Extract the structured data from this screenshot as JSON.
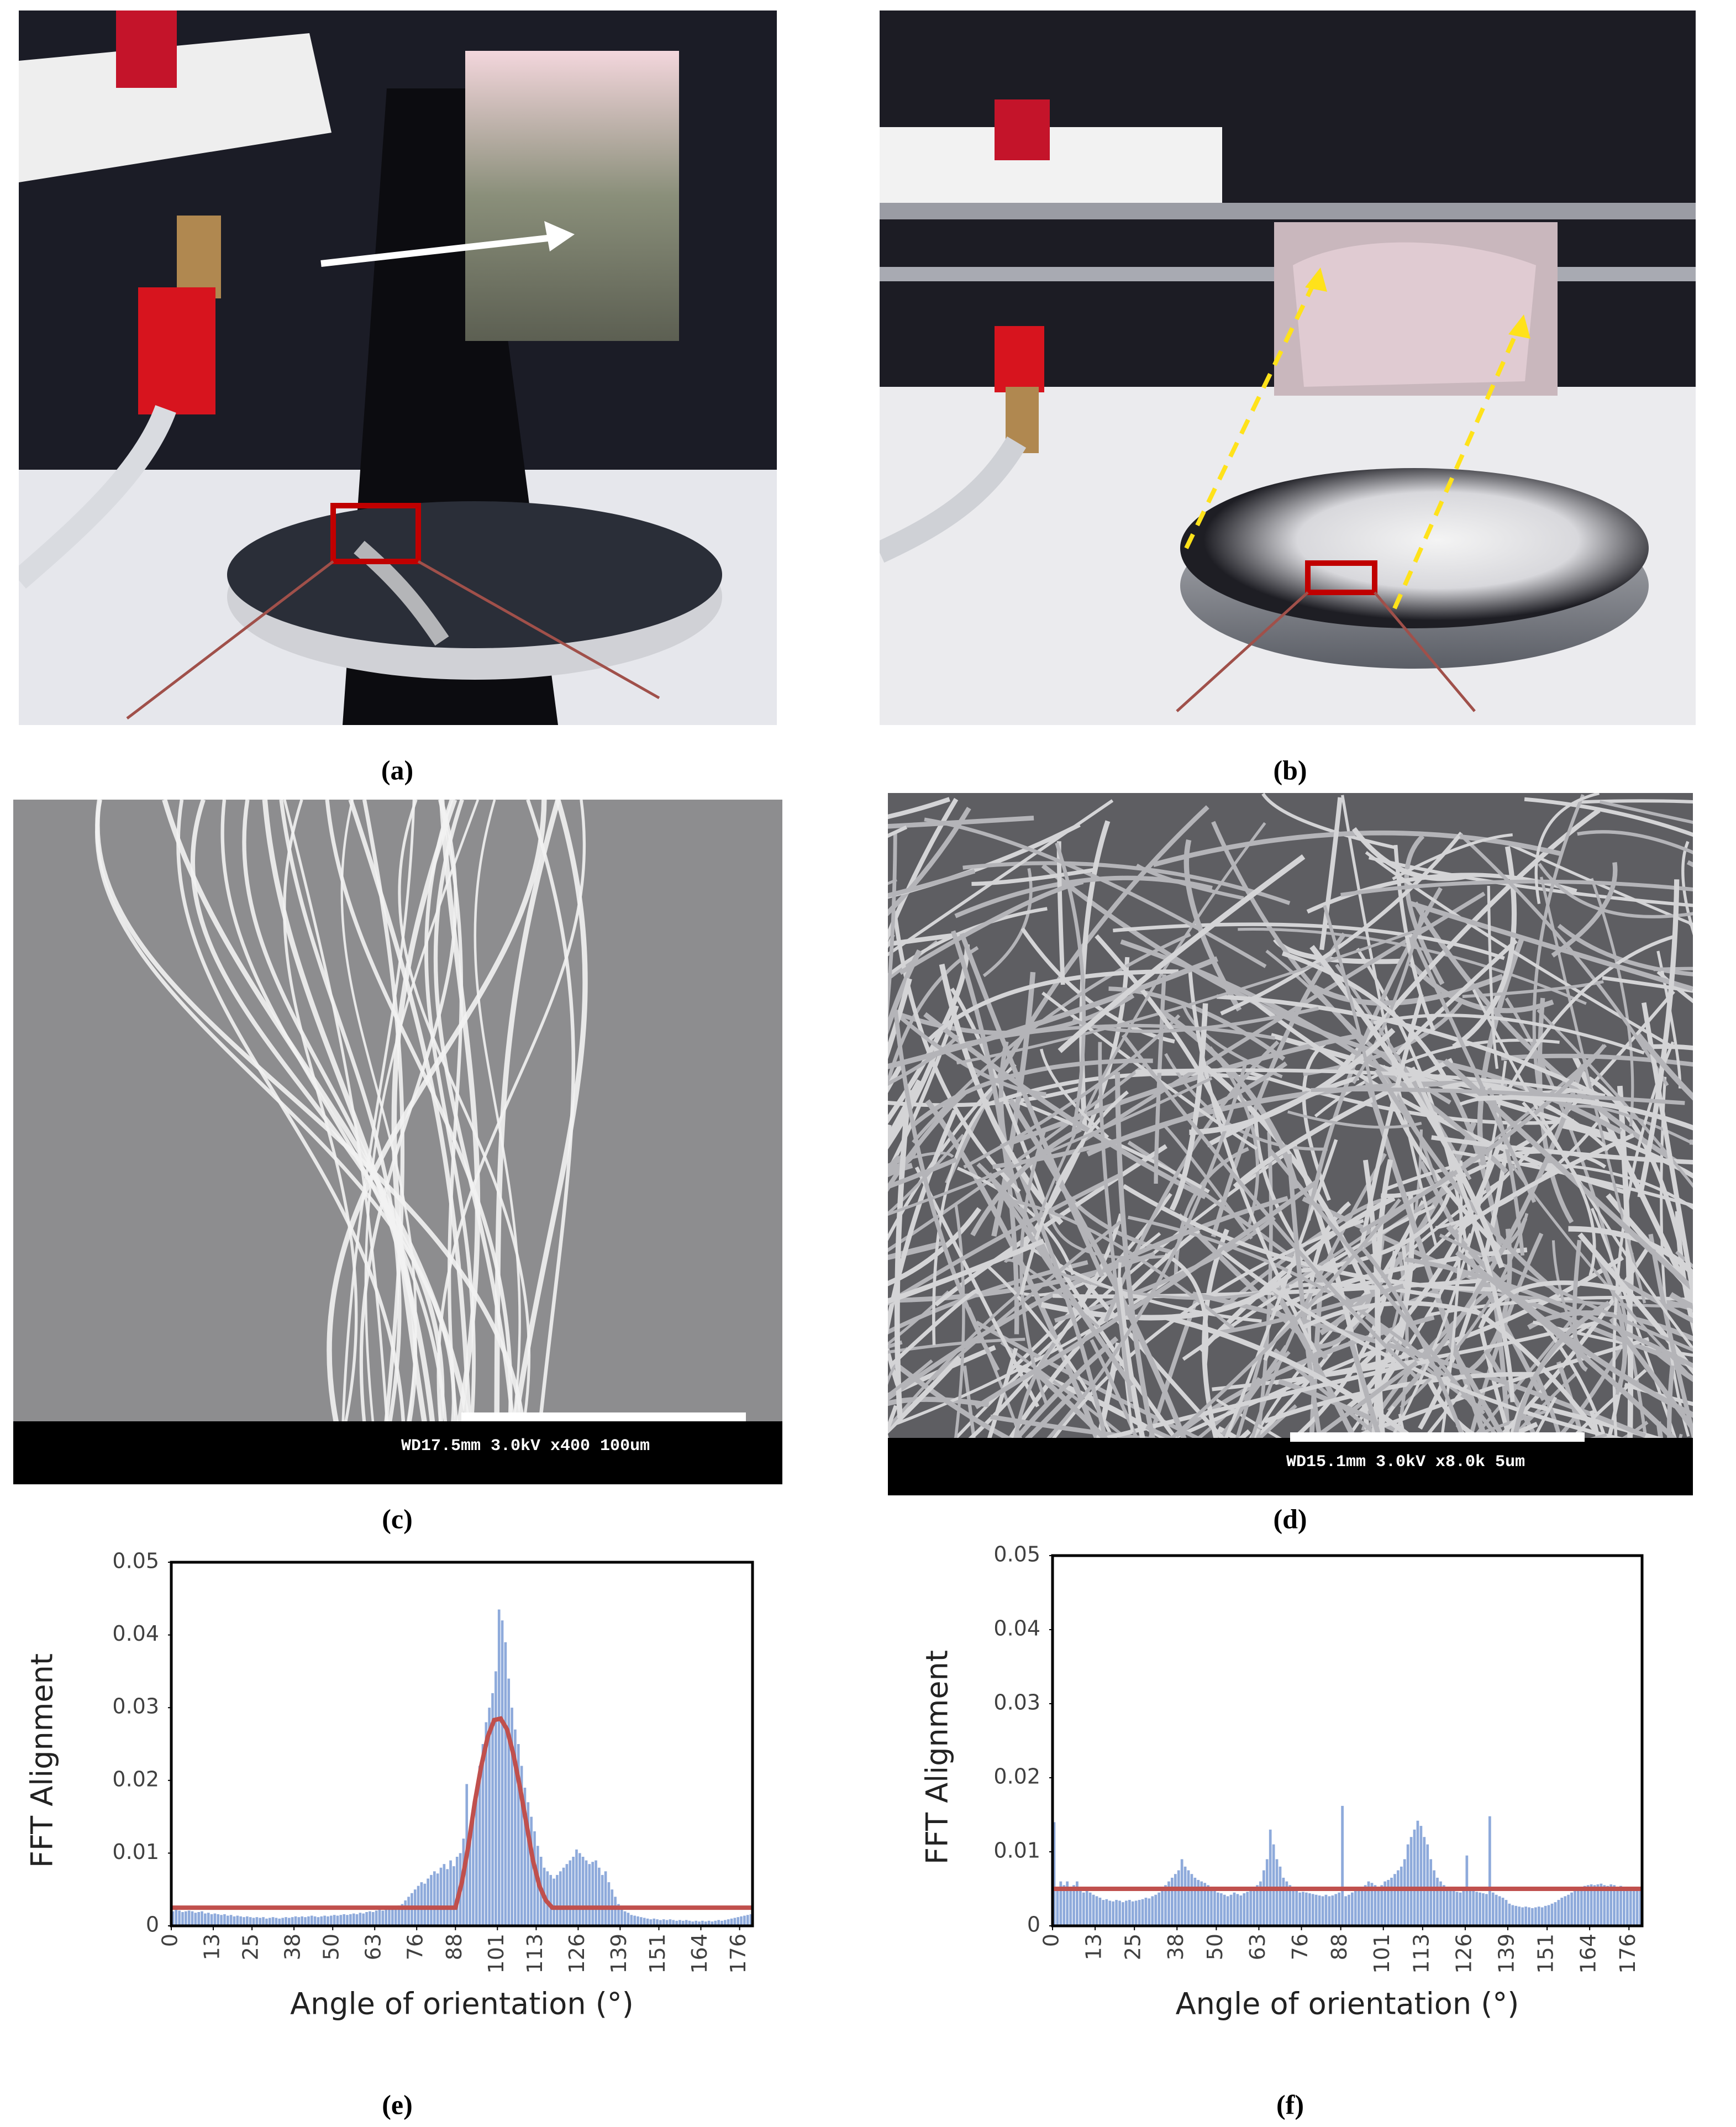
{
  "figure": {
    "panels": [
      {
        "label": "(a)"
      },
      {
        "label": "(b)"
      },
      {
        "label": "(c)"
      },
      {
        "label": "(d)"
      },
      {
        "label": "(e)"
      },
      {
        "label": "(f)"
      }
    ]
  },
  "sem": {
    "c": "WD17.5mm  3.0kV x400   100um",
    "d": "WD15.1mm  3.0kV x8.0k    5um"
  },
  "chart_data": [
    {
      "type": "histogram",
      "xlabel": "Angle of orientation (°)",
      "ylabel": "FFT Alignment",
      "color": "#8eaadb",
      "bins": [
        0,
        1,
        2,
        3,
        4,
        5,
        6,
        7,
        8,
        9,
        10,
        11,
        12,
        13,
        14,
        15,
        16,
        17,
        18,
        19,
        20,
        21,
        22,
        23,
        24,
        25,
        26,
        27,
        28,
        29,
        30,
        31,
        32,
        33,
        34,
        35,
        36,
        37,
        38,
        39,
        40,
        41,
        42,
        43,
        44,
        45,
        46,
        47,
        48,
        49,
        50,
        51,
        52,
        53,
        54,
        55,
        56,
        57,
        58,
        59,
        60,
        61,
        62,
        63,
        64,
        65,
        66,
        67,
        68,
        69,
        70,
        71,
        72,
        73,
        74,
        75,
        76,
        77,
        78,
        79,
        80,
        81,
        82,
        83,
        84,
        85,
        86,
        87,
        88,
        89,
        90,
        91,
        92,
        93,
        94,
        95,
        96,
        97,
        98,
        99,
        100,
        101,
        102,
        103,
        104,
        105,
        106,
        107,
        108,
        109,
        110,
        111,
        112,
        113,
        114,
        115,
        116,
        117,
        118,
        119,
        120,
        121,
        122,
        123,
        124,
        125,
        126,
        127,
        128,
        129,
        130,
        131,
        132,
        133,
        134,
        135,
        136,
        137,
        138,
        139,
        140,
        141,
        142,
        143,
        144,
        145,
        146,
        147,
        148,
        149,
        150,
        151,
        152,
        153,
        154,
        155,
        156,
        157,
        158,
        159,
        160,
        161,
        162,
        163,
        164,
        165,
        166,
        167,
        168,
        169,
        170,
        171,
        172,
        173,
        174,
        175,
        176,
        177,
        178,
        179,
        180
      ],
      "values": [
        0.002,
        0.0022,
        0.0021,
        0.0019,
        0.002,
        0.0021,
        0.002,
        0.0018,
        0.0019,
        0.002,
        0.0017,
        0.0018,
        0.0016,
        0.0017,
        0.0016,
        0.0015,
        0.0016,
        0.0014,
        0.0015,
        0.0013,
        0.0014,
        0.0013,
        0.0012,
        0.0013,
        0.0012,
        0.0011,
        0.0012,
        0.0011,
        0.0012,
        0.001,
        0.0011,
        0.0012,
        0.0011,
        0.001,
        0.0011,
        0.0012,
        0.0011,
        0.0012,
        0.0013,
        0.0012,
        0.0013,
        0.0012,
        0.0013,
        0.0014,
        0.0013,
        0.0012,
        0.0013,
        0.0014,
        0.0013,
        0.0014,
        0.0015,
        0.0014,
        0.0015,
        0.0016,
        0.0015,
        0.0016,
        0.0017,
        0.0016,
        0.0018,
        0.0017,
        0.0019,
        0.002,
        0.0019,
        0.0021,
        0.0022,
        0.0021,
        0.0023,
        0.0025,
        0.0024,
        0.0026,
        0.0028,
        0.003,
        0.0035,
        0.004,
        0.0045,
        0.005,
        0.0055,
        0.006,
        0.0058,
        0.0065,
        0.007,
        0.0075,
        0.0072,
        0.008,
        0.0085,
        0.0078,
        0.009,
        0.0082,
        0.0095,
        0.01,
        0.012,
        0.0195,
        0.013,
        0.016,
        0.018,
        0.022,
        0.025,
        0.028,
        0.03,
        0.032,
        0.035,
        0.0435,
        0.042,
        0.039,
        0.034,
        0.03,
        0.027,
        0.025,
        0.022,
        0.019,
        0.017,
        0.015,
        0.013,
        0.011,
        0.0095,
        0.008,
        0.0075,
        0.007,
        0.0065,
        0.007,
        0.0075,
        0.008,
        0.0085,
        0.009,
        0.0095,
        0.0105,
        0.01,
        0.0095,
        0.009,
        0.0085,
        0.0088,
        0.009,
        0.008,
        0.007,
        0.0075,
        0.006,
        0.005,
        0.004,
        0.003,
        0.0025,
        0.002,
        0.0018,
        0.0015,
        0.0014,
        0.0013,
        0.0012,
        0.0011,
        0.001,
        0.0009,
        0.001,
        0.0009,
        0.0008,
        0.0009,
        0.0008,
        0.0009,
        0.0008,
        0.0007,
        0.0008,
        0.0007,
        0.0008,
        0.0007,
        0.0006,
        0.0007,
        0.0006,
        0.0007,
        0.0006,
        0.0007,
        0.0006,
        0.0007,
        0.0008,
        0.0007,
        0.0008,
        0.0009,
        0.001,
        0.0011,
        0.0012,
        0.0013,
        0.0014,
        0.0015,
        0.0016
      ],
      "fit": {
        "color": "#c0504d",
        "x": [
          0,
          88,
          90,
          92,
          94,
          96,
          98,
          100,
          102,
          104,
          106,
          108,
          110,
          112,
          114,
          116,
          118,
          180
        ],
        "values": [
          0.0025,
          0.0025,
          0.006,
          0.011,
          0.017,
          0.022,
          0.026,
          0.0283,
          0.0285,
          0.027,
          0.0235,
          0.019,
          0.014,
          0.009,
          0.0055,
          0.0035,
          0.0025,
          0.0025
        ]
      },
      "xlim": [
        0,
        180
      ],
      "xticks": [
        0,
        13,
        25,
        38,
        50,
        63,
        76,
        88,
        101,
        113,
        126,
        139,
        151,
        164,
        176
      ],
      "ylim": [
        0,
        0.05
      ],
      "yticks": [
        0,
        0.01,
        0.02,
        0.03,
        0.04,
        0.05
      ]
    },
    {
      "type": "histogram",
      "xlabel": "Angle of orientation (°)",
      "ylabel": "FFT Alignment",
      "color": "#8eaadb",
      "bins": [
        0,
        1,
        2,
        3,
        4,
        5,
        6,
        7,
        8,
        9,
        10,
        11,
        12,
        13,
        14,
        15,
        16,
        17,
        18,
        19,
        20,
        21,
        22,
        23,
        24,
        25,
        26,
        27,
        28,
        29,
        30,
        31,
        32,
        33,
        34,
        35,
        36,
        37,
        38,
        39,
        40,
        41,
        42,
        43,
        44,
        45,
        46,
        47,
        48,
        49,
        50,
        51,
        52,
        53,
        54,
        55,
        56,
        57,
        58,
        59,
        60,
        61,
        62,
        63,
        64,
        65,
        66,
        67,
        68,
        69,
        70,
        71,
        72,
        73,
        74,
        75,
        76,
        77,
        78,
        79,
        80,
        81,
        82,
        83,
        84,
        85,
        86,
        87,
        88,
        89,
        90,
        91,
        92,
        93,
        94,
        95,
        96,
        97,
        98,
        99,
        100,
        101,
        102,
        103,
        104,
        105,
        106,
        107,
        108,
        109,
        110,
        111,
        112,
        113,
        114,
        115,
        116,
        117,
        118,
        119,
        120,
        121,
        122,
        123,
        124,
        125,
        126,
        127,
        128,
        129,
        130,
        131,
        132,
        133,
        134,
        135,
        136,
        137,
        138,
        139,
        140,
        141,
        142,
        143,
        144,
        145,
        146,
        147,
        148,
        149,
        150,
        151,
        152,
        153,
        154,
        155,
        156,
        157,
        158,
        159,
        160,
        161,
        162,
        163,
        164,
        165,
        166,
        167,
        168,
        169,
        170,
        171,
        172,
        173,
        174,
        175,
        176,
        177,
        178,
        179,
        180
      ],
      "values": [
        0.014,
        0.005,
        0.006,
        0.0055,
        0.006,
        0.005,
        0.0055,
        0.006,
        0.005,
        0.0045,
        0.005,
        0.0045,
        0.0042,
        0.004,
        0.0038,
        0.0035,
        0.0036,
        0.0034,
        0.0033,
        0.0035,
        0.0034,
        0.0032,
        0.0034,
        0.0035,
        0.0033,
        0.0034,
        0.0035,
        0.0036,
        0.0038,
        0.0037,
        0.004,
        0.0042,
        0.0045,
        0.005,
        0.0055,
        0.006,
        0.0065,
        0.007,
        0.0075,
        0.009,
        0.008,
        0.0075,
        0.007,
        0.0065,
        0.0062,
        0.006,
        0.0058,
        0.0055,
        0.005,
        0.0048,
        0.0045,
        0.0044,
        0.0042,
        0.004,
        0.0042,
        0.0045,
        0.0043,
        0.0041,
        0.0044,
        0.0046,
        0.0048,
        0.005,
        0.0055,
        0.006,
        0.0075,
        0.009,
        0.013,
        0.011,
        0.009,
        0.008,
        0.0065,
        0.006,
        0.0055,
        0.005,
        0.0048,
        0.0045,
        0.0046,
        0.0045,
        0.0044,
        0.0043,
        0.0042,
        0.0041,
        0.004,
        0.0042,
        0.004,
        0.0041,
        0.0043,
        0.0045,
        0.0162,
        0.004,
        0.0042,
        0.0045,
        0.0048,
        0.005,
        0.0052,
        0.0055,
        0.006,
        0.0058,
        0.0055,
        0.0052,
        0.0055,
        0.006,
        0.0062,
        0.0065,
        0.007,
        0.0075,
        0.008,
        0.009,
        0.011,
        0.012,
        0.013,
        0.0142,
        0.0135,
        0.012,
        0.011,
        0.009,
        0.0075,
        0.0065,
        0.006,
        0.0055,
        0.0052,
        0.005,
        0.0048,
        0.0046,
        0.0045,
        0.0048,
        0.0095,
        0.005,
        0.0048,
        0.0046,
        0.0045,
        0.0044,
        0.0043,
        0.0148,
        0.0045,
        0.0042,
        0.004,
        0.0038,
        0.0035,
        0.003,
        0.0028,
        0.0027,
        0.0026,
        0.0025,
        0.0026,
        0.0025,
        0.0024,
        0.0025,
        0.0026,
        0.0025,
        0.0027,
        0.0028,
        0.003,
        0.0032,
        0.0035,
        0.0038,
        0.004,
        0.0042,
        0.0045,
        0.0048,
        0.005,
        0.0052,
        0.0054,
        0.0055,
        0.0056,
        0.0055,
        0.0056,
        0.0057,
        0.0055,
        0.0054,
        0.0056,
        0.0055,
        0.0053,
        0.0054,
        0.0052,
        0.0053,
        0.0051,
        0.005,
        0.0052,
        0.005
      ],
      "fit": {
        "color": "#c0504d",
        "x": [
          0,
          180
        ],
        "values": [
          0.005,
          0.005
        ]
      },
      "xlim": [
        0,
        180
      ],
      "xticks": [
        0,
        13,
        25,
        38,
        50,
        63,
        76,
        88,
        101,
        113,
        126,
        139,
        151,
        164,
        176
      ],
      "ylim": [
        0,
        0.05
      ],
      "yticks": [
        0,
        0.01,
        0.02,
        0.03,
        0.04,
        0.05
      ]
    }
  ]
}
